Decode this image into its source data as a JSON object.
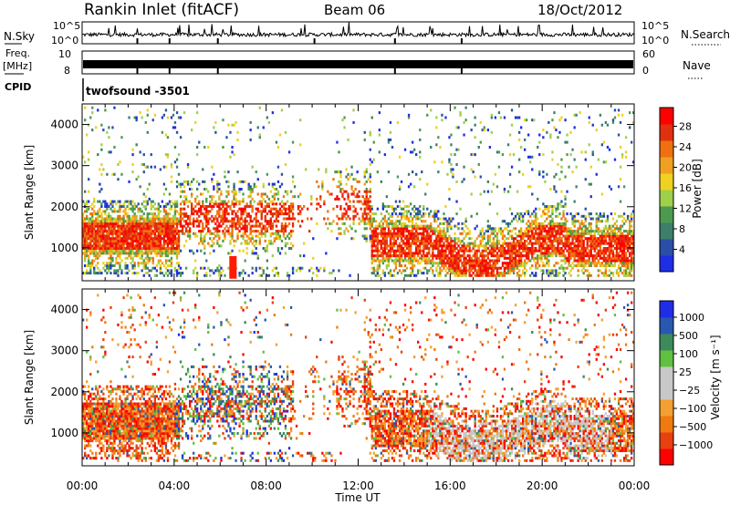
{
  "header": {
    "station": "Rankin Inlet (fitACF)",
    "beam": "Beam 06",
    "date": "18/Oct/2012"
  },
  "strip_labels": {
    "nsky": "N.Sky",
    "nsky_ticks": [
      "10^5",
      "10^0"
    ],
    "nsearch": "N.Search",
    "nsearch_ticks": [
      "10^5",
      "10^0"
    ],
    "freq_line1": "Freq.",
    "freq_line2": "[MHz]",
    "freq_ticks": [
      "10",
      "8"
    ],
    "nave": "Nave",
    "nave_ticks": [
      "60",
      "0"
    ],
    "cpid": "CPID",
    "cpid_value": "twofsound -3501"
  },
  "colors": {
    "power_scale": [
      "#1f2ee6",
      "#2a4fa8",
      "#3d7f6a",
      "#4c9a4e",
      "#9fd04a",
      "#f0d020",
      "#f0a020",
      "#f07010",
      "#e03010",
      "#ff0000"
    ],
    "velocity_scale": [
      "#ff0000",
      "#e84010",
      "#f07a10",
      "#f4a030",
      "#c8c8c8",
      "#c8c8c8",
      "#60c040",
      "#3d8a5a",
      "#2a58b0",
      "#1f2ee6"
    ]
  },
  "chart_data": [
    {
      "type": "heatmap",
      "panel": "power",
      "ylabel": "Slant Range [km]",
      "y_ticks": [
        1000,
        2000,
        3000,
        4000
      ],
      "ylim": [
        200,
        4500
      ],
      "x_ticks": [
        "00:00",
        "04:00",
        "08:00",
        "12:00",
        "16:00",
        "20:00",
        "00:00"
      ],
      "xlim_hours": [
        0,
        24
      ],
      "colorbar": {
        "label": "Power [dB]",
        "ticks": [
          "4",
          "8",
          "12",
          "16",
          "20",
          "24",
          "28"
        ]
      }
    },
    {
      "type": "heatmap",
      "panel": "velocity",
      "ylabel": "Slant Range [km]",
      "y_ticks": [
        1000,
        2000,
        3000,
        4000
      ],
      "ylim": [
        200,
        4500
      ],
      "x_ticks": [
        "00:00",
        "04:00",
        "08:00",
        "12:00",
        "16:00",
        "20:00",
        "00:00"
      ],
      "xlim_hours": [
        0,
        24
      ],
      "xlabel": "Time UT",
      "colorbar": {
        "label": "Velocity [m s⁻¹]",
        "ticks": [
          "1000",
          "500",
          "100",
          "25",
          "−25",
          "−100",
          "−500",
          "−1000"
        ]
      }
    }
  ]
}
